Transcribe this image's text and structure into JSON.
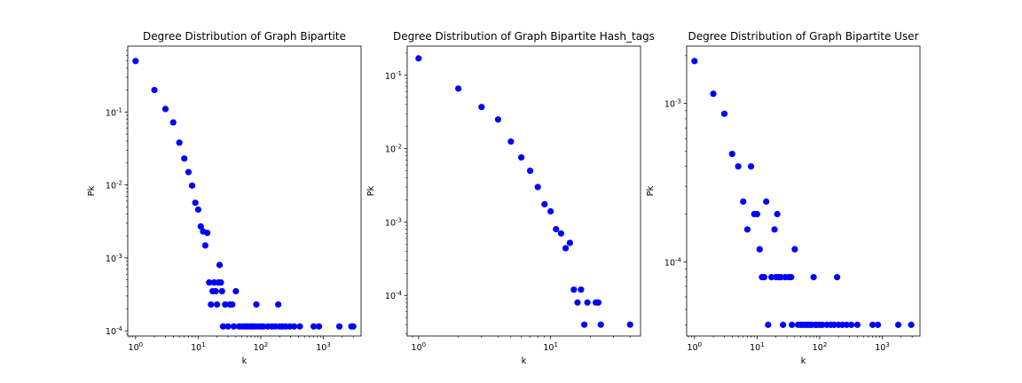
{
  "chart_data": [
    {
      "type": "scatter",
      "title": "Degree Distribution of Graph Bipartite",
      "xlabel": "k",
      "ylabel": "Pk",
      "xscale": "log",
      "yscale": "log",
      "xlim": [
        0.75,
        4000
      ],
      "ylim": [
        8.5e-05,
        0.8
      ],
      "xticks": [
        {
          "value": 1,
          "label": "10^0"
        },
        {
          "value": 10,
          "label": "10^1"
        },
        {
          "value": 100,
          "label": "10^2"
        },
        {
          "value": 1000,
          "label": "10^3"
        }
      ],
      "yticks": [
        {
          "value": 0.0001,
          "label": "10^-4"
        },
        {
          "value": 0.001,
          "label": "10^-3"
        },
        {
          "value": 0.01,
          "label": "10^-2"
        },
        {
          "value": 0.1,
          "label": "10^-1"
        }
      ],
      "grid": false,
      "color": "#0000ff",
      "points": [
        [
          1,
          0.5
        ],
        [
          2,
          0.2
        ],
        [
          3,
          0.11
        ],
        [
          4,
          0.072
        ],
        [
          5,
          0.038
        ],
        [
          6,
          0.023
        ],
        [
          7,
          0.015
        ],
        [
          8,
          0.0098
        ],
        [
          9,
          0.0057
        ],
        [
          10,
          0.0046
        ],
        [
          11,
          0.0027
        ],
        [
          12,
          0.0023
        ],
        [
          13,
          0.00148
        ],
        [
          14,
          0.0022
        ],
        [
          15,
          0.00046
        ],
        [
          16,
          0.00023
        ],
        [
          17,
          0.00035
        ],
        [
          18,
          0.00046
        ],
        [
          19,
          0.00035
        ],
        [
          20,
          0.00023
        ],
        [
          21,
          0.00046
        ],
        [
          22,
          0.0008
        ],
        [
          23,
          0.00046
        ],
        [
          24,
          0.00035
        ],
        [
          25,
          0.000115
        ],
        [
          27,
          0.00023
        ],
        [
          30,
          0.000115
        ],
        [
          32,
          0.00023
        ],
        [
          35,
          0.00023
        ],
        [
          37,
          0.000115
        ],
        [
          40,
          0.00035
        ],
        [
          45,
          0.000115
        ],
        [
          50,
          0.000115
        ],
        [
          55,
          0.000115
        ],
        [
          60,
          0.000115
        ],
        [
          65,
          0.000115
        ],
        [
          70,
          0.000115
        ],
        [
          75,
          0.000115
        ],
        [
          80,
          0.000115
        ],
        [
          85,
          0.00023
        ],
        [
          90,
          0.000115
        ],
        [
          100,
          0.000115
        ],
        [
          110,
          0.000115
        ],
        [
          130,
          0.000115
        ],
        [
          150,
          0.000115
        ],
        [
          170,
          0.000115
        ],
        [
          190,
          0.00023
        ],
        [
          200,
          0.000115
        ],
        [
          220,
          0.000115
        ],
        [
          250,
          0.000115
        ],
        [
          290,
          0.000115
        ],
        [
          340,
          0.000115
        ],
        [
          420,
          0.000115
        ],
        [
          700,
          0.000115
        ],
        [
          850,
          0.000115
        ],
        [
          1800,
          0.000115
        ],
        [
          2800,
          0.000115
        ],
        [
          3000,
          0.000115
        ]
      ]
    },
    {
      "type": "scatter",
      "title": "Degree Distribution of Graph Bipartite Hash_tags",
      "xlabel": "k",
      "ylabel": "Pk",
      "xscale": "log",
      "yscale": "log",
      "xlim": [
        0.82,
        48
      ],
      "ylim": [
        2.8e-05,
        0.25
      ],
      "xticks": [
        {
          "value": 1,
          "label": "10^0"
        },
        {
          "value": 10,
          "label": "10^1"
        }
      ],
      "yticks": [
        {
          "value": 0.0001,
          "label": "10^-4"
        },
        {
          "value": 0.001,
          "label": "10^-3"
        },
        {
          "value": 0.01,
          "label": "10^-2"
        },
        {
          "value": 0.1,
          "label": "10^-1"
        }
      ],
      "grid": false,
      "color": "#0000ff",
      "points": [
        [
          1,
          0.17
        ],
        [
          2,
          0.066
        ],
        [
          3,
          0.037
        ],
        [
          4,
          0.025
        ],
        [
          5,
          0.0125
        ],
        [
          6,
          0.0076
        ],
        [
          7,
          0.005
        ],
        [
          8,
          0.003
        ],
        [
          9,
          0.00175
        ],
        [
          10,
          0.0014
        ],
        [
          11,
          0.0008
        ],
        [
          12,
          0.0007
        ],
        [
          13,
          0.00044
        ],
        [
          14,
          0.00052
        ],
        [
          15,
          0.00012
        ],
        [
          16,
          8e-05
        ],
        [
          17,
          0.00012
        ],
        [
          18,
          4e-05
        ],
        [
          19,
          8e-05
        ],
        [
          22,
          8e-05
        ],
        [
          23,
          8e-05
        ],
        [
          24,
          4e-05
        ],
        [
          40,
          4e-05
        ]
      ]
    },
    {
      "type": "scatter",
      "title": "Degree Distribution of Graph Bipartite User",
      "xlabel": "k",
      "ylabel": "Pk",
      "xscale": "log",
      "yscale": "log",
      "xlim": [
        0.75,
        4000
      ],
      "ylim": [
        3.4e-05,
        0.0023
      ],
      "xticks": [
        {
          "value": 1,
          "label": "10^0"
        },
        {
          "value": 10,
          "label": "10^1"
        },
        {
          "value": 100,
          "label": "10^2"
        },
        {
          "value": 1000,
          "label": "10^3"
        }
      ],
      "yticks": [
        {
          "value": 0.0001,
          "label": "10^-4"
        },
        {
          "value": 0.001,
          "label": "10^-3"
        }
      ],
      "grid": false,
      "color": "#0000ff",
      "points": [
        [
          1,
          0.00185
        ],
        [
          2,
          0.00115
        ],
        [
          3,
          0.00086
        ],
        [
          4,
          0.00048
        ],
        [
          5,
          0.0004
        ],
        [
          6,
          0.00024
        ],
        [
          7,
          0.00016
        ],
        [
          8,
          0.0004
        ],
        [
          9,
          0.0002
        ],
        [
          10,
          0.0002
        ],
        [
          11,
          0.00012
        ],
        [
          12,
          8e-05
        ],
        [
          13,
          8e-05
        ],
        [
          14,
          0.00024
        ],
        [
          15,
          4e-05
        ],
        [
          17,
          8e-05
        ],
        [
          19,
          0.00016
        ],
        [
          20,
          8e-05
        ],
        [
          21,
          0.0002
        ],
        [
          22,
          8e-05
        ],
        [
          24,
          8e-05
        ],
        [
          26,
          4e-05
        ],
        [
          28,
          8e-05
        ],
        [
          32,
          8e-05
        ],
        [
          35,
          8e-05
        ],
        [
          36,
          4e-05
        ],
        [
          40,
          0.00012
        ],
        [
          45,
          4e-05
        ],
        [
          50,
          4e-05
        ],
        [
          55,
          4e-05
        ],
        [
          60,
          4e-05
        ],
        [
          65,
          4e-05
        ],
        [
          70,
          4e-05
        ],
        [
          75,
          4e-05
        ],
        [
          80,
          8e-05
        ],
        [
          85,
          4e-05
        ],
        [
          90,
          4e-05
        ],
        [
          100,
          4e-05
        ],
        [
          110,
          4e-05
        ],
        [
          130,
          4e-05
        ],
        [
          150,
          4e-05
        ],
        [
          170,
          4e-05
        ],
        [
          190,
          8e-05
        ],
        [
          200,
          4e-05
        ],
        [
          230,
          4e-05
        ],
        [
          270,
          4e-05
        ],
        [
          320,
          4e-05
        ],
        [
          400,
          4e-05
        ],
        [
          700,
          4e-05
        ],
        [
          850,
          4e-05
        ],
        [
          1800,
          4e-05
        ],
        [
          2900,
          4e-05
        ]
      ]
    }
  ]
}
